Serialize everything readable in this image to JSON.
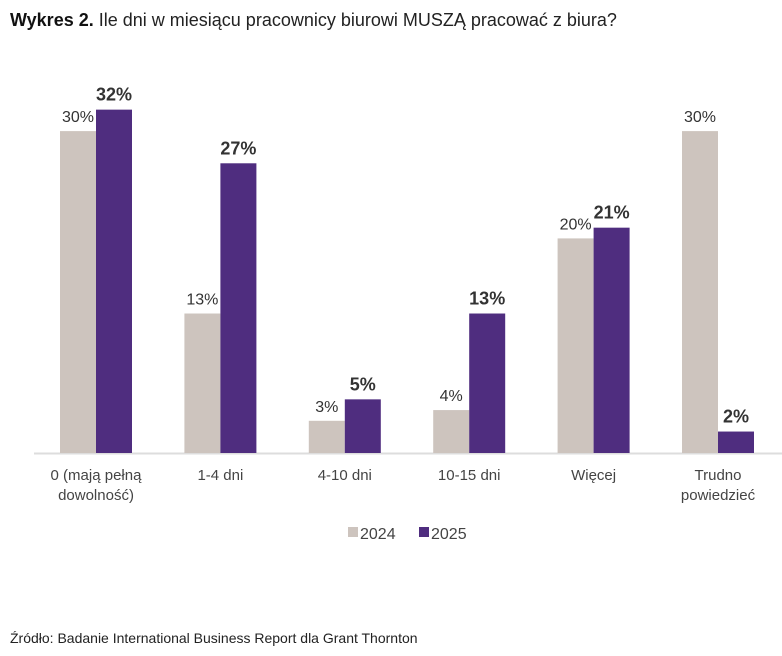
{
  "title_prefix": "Wykres 2.",
  "title_text": "Ile dni w miesiącu pracownicy biurowi MUSZĄ pracować z biura?",
  "source": "Źródło: Badanie International Business Report dla Grant Thornton",
  "chart_data": {
    "type": "bar",
    "title": "Wykres 2. Ile dni w miesiącu pracownicy biurowi MUSZĄ pracować z biura?",
    "categories": [
      [
        "0 (mają pełną",
        "dowolność)"
      ],
      [
        "1-4 dni"
      ],
      [
        "4-10 dni"
      ],
      [
        "10-15 dni"
      ],
      [
        "Więcej"
      ],
      [
        "Trudno",
        "powiedzieć"
      ]
    ],
    "series": [
      {
        "name": "2024",
        "color": "#cdc4be",
        "values": [
          30,
          13,
          3,
          4,
          20,
          30
        ],
        "labels": [
          "30%",
          "13%",
          "3%",
          "4%",
          "20%",
          "30%"
        ]
      },
      {
        "name": "2025",
        "color": "#4f2d7f",
        "values": [
          32,
          27,
          5,
          13,
          21,
          2
        ],
        "labels": [
          "32%",
          "27%",
          "5%",
          "13%",
          "21%",
          "2%"
        ]
      }
    ],
    "ylim": [
      0,
      32
    ],
    "grid": false,
    "legend": "bottom-center",
    "xlabel": "",
    "ylabel": ""
  }
}
